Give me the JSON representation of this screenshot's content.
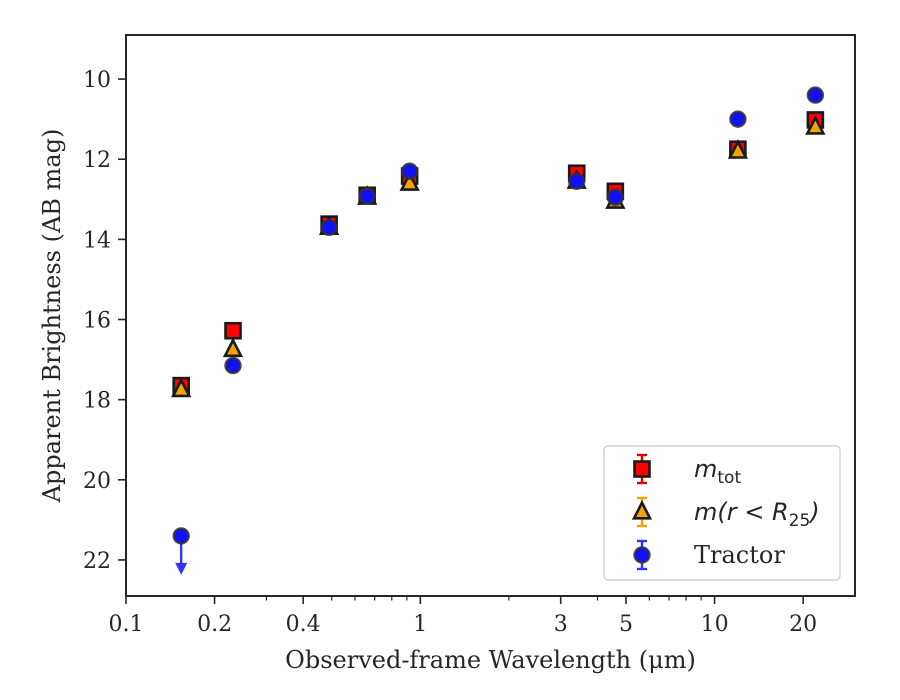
{
  "chart_data": {
    "type": "scatter",
    "title": "",
    "xlabel": "Observed-frame Wavelength (μm)",
    "ylabel": "Apparent Brightness (AB mag)",
    "x_scale": "log",
    "y_inverted": true,
    "xlim": [
      0.1,
      30
    ],
    "ylim": [
      22.9,
      8.9
    ],
    "x_ticks": [
      {
        "value": 0.1,
        "label": "0.1"
      },
      {
        "value": 0.2,
        "label": "0.2"
      },
      {
        "value": 0.4,
        "label": "0.4"
      },
      {
        "value": 1,
        "label": "1"
      },
      {
        "value": 3,
        "label": "3"
      },
      {
        "value": 5,
        "label": "5"
      },
      {
        "value": 10,
        "label": "10"
      },
      {
        "value": 20,
        "label": "20"
      }
    ],
    "y_ticks": [
      10,
      12,
      14,
      16,
      18,
      20,
      22
    ],
    "legend_position": "lower-right",
    "series": [
      {
        "name": "m_tot",
        "label_main": "m",
        "label_sub": "tot",
        "label_tail": "",
        "marker": "square",
        "color": "#ff0000",
        "points": [
          {
            "x": 0.154,
            "y": 17.65
          },
          {
            "x": 0.231,
            "y": 16.28
          },
          {
            "x": 0.49,
            "y": 13.62
          },
          {
            "x": 0.66,
            "y": 12.9
          },
          {
            "x": 0.92,
            "y": 12.42
          },
          {
            "x": 3.4,
            "y": 12.35
          },
          {
            "x": 4.6,
            "y": 12.8
          },
          {
            "x": 12.0,
            "y": 11.75
          },
          {
            "x": 22.0,
            "y": 11.02
          }
        ]
      },
      {
        "name": "m(r<R25)",
        "label_main": "m(r < R",
        "label_sub": "25",
        "label_tail": ")",
        "marker": "triangle",
        "color": "#f5a300",
        "points": [
          {
            "x": 0.154,
            "y": 17.75
          },
          {
            "x": 0.231,
            "y": 16.75
          },
          {
            "x": 0.49,
            "y": 13.7
          },
          {
            "x": 0.66,
            "y": 12.95
          },
          {
            "x": 0.92,
            "y": 12.6
          },
          {
            "x": 3.4,
            "y": 12.55
          },
          {
            "x": 4.6,
            "y": 13.05
          },
          {
            "x": 12.0,
            "y": 11.8
          },
          {
            "x": 22.0,
            "y": 11.2
          }
        ]
      },
      {
        "name": "Tractor",
        "label_main": "Tractor",
        "label_sub": "",
        "label_tail": "",
        "marker": "circle",
        "color": "#1010ff",
        "points": [
          {
            "x": 0.154,
            "y": 21.4,
            "upper_limit": true
          },
          {
            "x": 0.231,
            "y": 17.15
          },
          {
            "x": 0.49,
            "y": 13.7
          },
          {
            "x": 0.66,
            "y": 12.92
          },
          {
            "x": 0.92,
            "y": 12.3
          },
          {
            "x": 3.4,
            "y": 12.55
          },
          {
            "x": 4.6,
            "y": 12.95
          },
          {
            "x": 12.0,
            "y": 11.0
          },
          {
            "x": 22.0,
            "y": 10.4
          }
        ]
      }
    ]
  }
}
